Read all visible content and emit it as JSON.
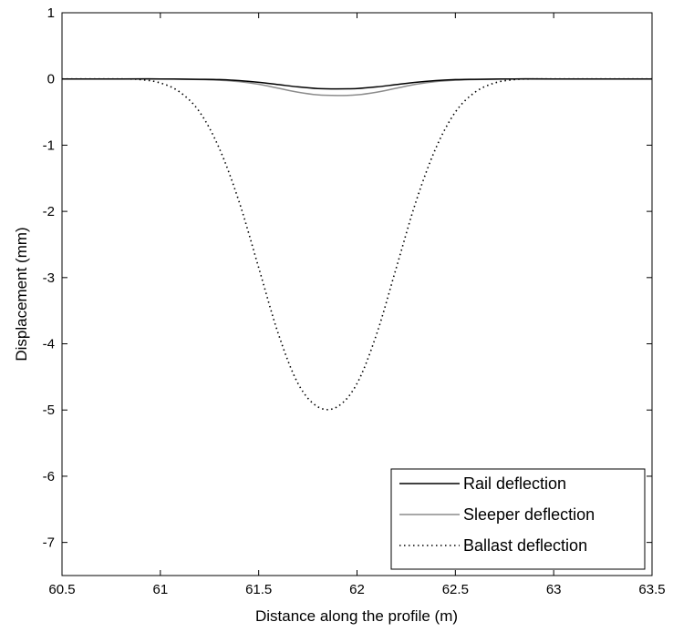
{
  "chart_data": {
    "type": "line",
    "title": "",
    "xlabel": "Distance along the profile (m)",
    "ylabel": "Displacement (mm)",
    "xlim": [
      60.5,
      63.5
    ],
    "ylim": [
      -7.5,
      1
    ],
    "xticks": [
      "60.5",
      "61",
      "61.5",
      "62",
      "62.5",
      "63",
      "63.5"
    ],
    "yticks": [
      "1",
      "0",
      "-1",
      "-2",
      "-3",
      "-4",
      "-5",
      "-6",
      "-7"
    ],
    "grid": false,
    "legend_position": "bottom-right",
    "series": [
      {
        "name": "Rail deflection",
        "color": "#000000",
        "style": "solid",
        "x": [
          60.5,
          60.8,
          61.0,
          61.2,
          61.3,
          61.4,
          61.5,
          61.6,
          61.7,
          61.8,
          61.9,
          62.0,
          62.1,
          62.2,
          62.3,
          62.4,
          62.5,
          62.6,
          62.8,
          63.0,
          63.5
        ],
        "y": [
          0,
          0,
          0,
          -0.005,
          -0.01,
          -0.025,
          -0.05,
          -0.085,
          -0.12,
          -0.145,
          -0.15,
          -0.145,
          -0.12,
          -0.085,
          -0.05,
          -0.025,
          -0.01,
          -0.005,
          0,
          0,
          0
        ]
      },
      {
        "name": "Sleeper deflection",
        "color": "#8c8c8c",
        "style": "solid",
        "x": [
          60.5,
          60.8,
          61.0,
          61.2,
          61.3,
          61.4,
          61.5,
          61.6,
          61.7,
          61.8,
          61.9,
          62.0,
          62.1,
          62.2,
          62.3,
          62.4,
          62.5,
          62.6,
          62.8,
          63.0,
          63.5
        ],
        "y": [
          0,
          0,
          0,
          -0.01,
          -0.02,
          -0.04,
          -0.08,
          -0.14,
          -0.2,
          -0.24,
          -0.25,
          -0.24,
          -0.2,
          -0.14,
          -0.08,
          -0.04,
          -0.02,
          -0.01,
          0,
          0,
          0
        ]
      },
      {
        "name": "Ballast deflection",
        "color": "#000000",
        "style": "dotted",
        "x": [
          60.5,
          60.8,
          60.9,
          61.0,
          61.1,
          61.2,
          61.3,
          61.4,
          61.5,
          61.6,
          61.7,
          61.8,
          61.9,
          62.0,
          62.1,
          62.2,
          62.3,
          62.4,
          62.5,
          62.6,
          62.7,
          62.8,
          62.9,
          63.0,
          63.5
        ],
        "y": [
          0,
          0,
          -0.01,
          -0.06,
          -0.2,
          -0.5,
          -1.05,
          -1.85,
          -2.85,
          -3.85,
          -4.6,
          -4.95,
          -4.95,
          -4.6,
          -3.85,
          -2.85,
          -1.85,
          -1.05,
          -0.5,
          -0.2,
          -0.06,
          -0.01,
          0,
          0,
          0
        ]
      }
    ]
  }
}
